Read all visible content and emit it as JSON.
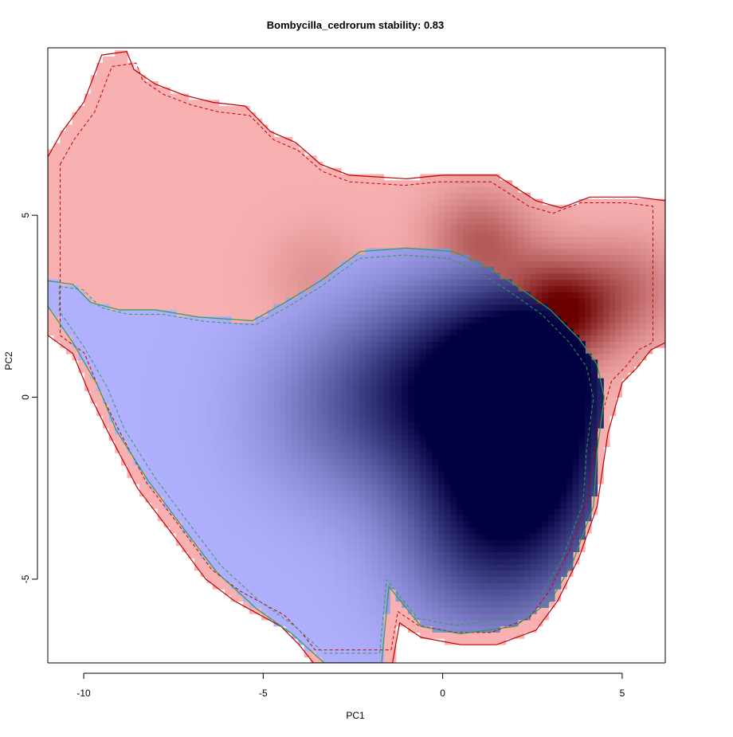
{
  "chart_data": {
    "type": "heatmap",
    "title": "Bombycilla_cedrorum stability: 0.83",
    "xlabel": "PC1",
    "ylabel": "PC2",
    "xlim": [
      -11,
      6.2
    ],
    "ylim": [
      -7.3,
      9.6
    ],
    "x_ticks": [
      -10,
      -5,
      0,
      5
    ],
    "y_ticks": [
      -5,
      0,
      5
    ],
    "x_tick_labels": [
      "-10",
      "-5",
      "0",
      "5"
    ],
    "y_tick_labels": [
      "-5",
      "0",
      "5"
    ],
    "grid": false,
    "legend": "none",
    "series": [
      {
        "role": "reference",
        "color": "#f8b0b0",
        "density_color": "#6b0000",
        "outline_color": "#c00000",
        "boundary": [
          [
            -11,
            6.6
          ],
          [
            -10.6,
            7.3
          ],
          [
            -10,
            8.1
          ],
          [
            -9.5,
            9.4
          ],
          [
            -8.8,
            9.5
          ],
          [
            -8.6,
            9.0
          ],
          [
            -8.0,
            8.6
          ],
          [
            -7.2,
            8.3
          ],
          [
            -6.4,
            8.1
          ],
          [
            -5.5,
            8.0
          ],
          [
            -4.8,
            7.3
          ],
          [
            -4.1,
            7.0
          ],
          [
            -3.4,
            6.4
          ],
          [
            -2.6,
            6.1
          ],
          [
            -1,
            6.0
          ],
          [
            0,
            6.1
          ],
          [
            1.5,
            6.1
          ],
          [
            2.6,
            5.4
          ],
          [
            3.3,
            5.2
          ],
          [
            4.1,
            5.5
          ],
          [
            4.8,
            5.5
          ],
          [
            5.4,
            5.5
          ],
          [
            6.2,
            5.4
          ],
          [
            6.2,
            1.5
          ],
          [
            5.8,
            1.3
          ],
          [
            5.4,
            0.8
          ],
          [
            5.0,
            0.4
          ],
          [
            4.6,
            -1.0
          ],
          [
            4.3,
            -3.0
          ],
          [
            3.8,
            -4.4
          ],
          [
            3.2,
            -5.6
          ],
          [
            2.6,
            -6.4
          ],
          [
            1.5,
            -6.8
          ],
          [
            0.5,
            -6.8
          ],
          [
            -0.6,
            -6.6
          ],
          [
            -1.2,
            -6.2
          ],
          [
            -1.4,
            -7.3
          ],
          [
            -3.6,
            -7.3
          ],
          [
            -4.0,
            -6.8
          ],
          [
            -4.5,
            -6.3
          ],
          [
            -5.8,
            -5.6
          ],
          [
            -6.6,
            -5.0
          ],
          [
            -7.5,
            -3.8
          ],
          [
            -8.5,
            -2.5
          ],
          [
            -9.3,
            -1.0
          ],
          [
            -9.8,
            0.0
          ],
          [
            -10.3,
            1.2
          ],
          [
            -11,
            1.7
          ]
        ],
        "peaks": [
          {
            "x": 3.2,
            "y": 2.3,
            "weight": 1.0
          },
          {
            "x": 1.0,
            "y": 4.3,
            "weight": 0.55
          },
          {
            "x": 5.3,
            "y": 3.0,
            "weight": 0.4
          },
          {
            "x": -3.5,
            "y": 3.3,
            "weight": 0.25
          }
        ]
      },
      {
        "role": "comparison",
        "color": "#b0b0ff",
        "density_color": "#000040",
        "outline_color": "#2e9e4f",
        "boundary": [
          [
            -11,
            3.2
          ],
          [
            -10.3,
            3.1
          ],
          [
            -9.8,
            2.6
          ],
          [
            -9.0,
            2.4
          ],
          [
            -8.0,
            2.4
          ],
          [
            -6.8,
            2.2
          ],
          [
            -5.3,
            2.1
          ],
          [
            -4.4,
            2.6
          ],
          [
            -3.4,
            3.2
          ],
          [
            -2.3,
            4.0
          ],
          [
            -1.0,
            4.1
          ],
          [
            0.3,
            4.0
          ],
          [
            1.0,
            3.7
          ],
          [
            2.0,
            3.1
          ],
          [
            3.0,
            2.4
          ],
          [
            3.8,
            1.6
          ],
          [
            4.3,
            0.9
          ],
          [
            4.5,
            0.0
          ],
          [
            4.3,
            -1.5
          ],
          [
            4.2,
            -3.0
          ],
          [
            3.6,
            -4.6
          ],
          [
            3.0,
            -5.6
          ],
          [
            2.0,
            -6.3
          ],
          [
            0.5,
            -6.5
          ],
          [
            -0.6,
            -6.3
          ],
          [
            -1.5,
            -5.2
          ],
          [
            -1.7,
            -7.3
          ],
          [
            -3.3,
            -7.3
          ],
          [
            -4.2,
            -6.5
          ],
          [
            -5.2,
            -5.8
          ],
          [
            -6.3,
            -4.8
          ],
          [
            -7.3,
            -3.5
          ],
          [
            -8.2,
            -2.3
          ],
          [
            -9.1,
            -0.9
          ],
          [
            -9.6,
            0.3
          ],
          [
            -10.3,
            1.5
          ],
          [
            -11,
            2.5
          ]
        ],
        "peaks": [
          {
            "x": 2.7,
            "y": 1.1,
            "weight": 1.0
          },
          {
            "x": 2.3,
            "y": -2.1,
            "weight": 0.75
          },
          {
            "x": -0.3,
            "y": 0.4,
            "weight": 0.6
          },
          {
            "x": 1.3,
            "y": -4.2,
            "weight": 0.5
          },
          {
            "x": -3.0,
            "y": -0.4,
            "weight": 0.3
          }
        ]
      }
    ]
  }
}
